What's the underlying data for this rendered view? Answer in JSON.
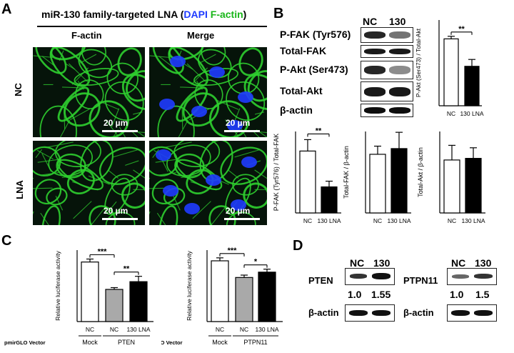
{
  "panel_labels": {
    "a": "A",
    "b": "B",
    "c": "C",
    "d": "D"
  },
  "panel_a": {
    "title_prefix": "miR-130 family-targeted LNA (",
    "title_dapi": "DAPI",
    "title_factin": "F-actin",
    "title_suffix": ")",
    "col_factin": "F-actin",
    "col_merge": "Merge",
    "row_nc": "NC",
    "row_lna": "LNA",
    "scale_label": "20 µm",
    "colors": {
      "factin": "#2fcf2f",
      "dapi": "#1f3bff"
    }
  },
  "panel_b": {
    "lane_nc": "NC",
    "lane_130": "130",
    "blot_labels": [
      "P-FAK (Tyr576)",
      "Total-FAK",
      "P-Akt (Ser473)",
      "Total-Akt",
      "β-actin"
    ],
    "blot_intensity": [
      [
        0.85,
        0.55
      ],
      [
        0.9,
        0.9
      ],
      [
        0.85,
        0.45
      ],
      [
        0.9,
        0.9
      ],
      [
        0.95,
        0.95
      ]
    ]
  },
  "panel_d": {
    "pten": {
      "lane_nc": "NC",
      "lane_130": "130",
      "label": "PTEN",
      "q1": "1.0",
      "q2": "1.55",
      "actin": "β-actin"
    },
    "ptpn11": {
      "lane_nc": "NC",
      "lane_130": "130",
      "label": "PTPN11",
      "q1": "1.0",
      "q2": "1.5",
      "actin": "β-actin"
    }
  },
  "chart_data": [
    {
      "type": "bar",
      "panel": "B",
      "id": "b-pakt",
      "categories": [
        "NC",
        "130 LNA"
      ],
      "values": [
        0.78,
        0.46
      ],
      "errors": [
        0.03,
        0.08
      ],
      "colors": [
        "#ffffff",
        "#000000"
      ],
      "ylabel": "P-Akt (Ser473) / Total-Akt",
      "sig": [
        "**"
      ]
    },
    {
      "type": "bar",
      "panel": "B",
      "id": "b-pfak",
      "categories": [
        "NC",
        "130 LNA"
      ],
      "values": [
        0.76,
        0.32
      ],
      "errors": [
        0.14,
        0.07
      ],
      "colors": [
        "#ffffff",
        "#000000"
      ],
      "ylabel": "P-FAK (Tyr576) / Total-FAK",
      "sig": [
        "**"
      ]
    },
    {
      "type": "bar",
      "panel": "B",
      "id": "b-tfak",
      "categories": [
        "NC",
        "130 LNA"
      ],
      "values": [
        0.72,
        0.79
      ],
      "errors": [
        0.1,
        0.2
      ],
      "colors": [
        "#ffffff",
        "#000000"
      ],
      "ylabel": "Total-FAK / β-actin",
      "sig": []
    },
    {
      "type": "bar",
      "panel": "B",
      "id": "b-takt",
      "categories": [
        "NC",
        "130 LNA"
      ],
      "values": [
        0.65,
        0.67
      ],
      "errors": [
        0.18,
        0.13
      ],
      "colors": [
        "#ffffff",
        "#000000"
      ],
      "ylabel": "Total-Akt / β-actin",
      "sig": []
    },
    {
      "type": "bar",
      "panel": "C",
      "id": "c-pten",
      "categories": [
        "NC",
        "NC",
        "130 LNA"
      ],
      "groups": [
        "Mock",
        "PTEN"
      ],
      "group_title": "pmirGLO Vector",
      "values": [
        1.0,
        0.54,
        0.67
      ],
      "errors": [
        0.05,
        0.03,
        0.09
      ],
      "colors": [
        "#ffffff",
        "#a9a9a9",
        "#000000"
      ],
      "ylabel": "Relative luciferase activity",
      "sig": [
        "***",
        "**"
      ]
    },
    {
      "type": "bar",
      "panel": "C",
      "id": "c-ptpn11",
      "categories": [
        "NC",
        "NC",
        "130 LNA"
      ],
      "groups": [
        "Mock",
        "PTPN11"
      ],
      "group_title": "pmirGLO Vector",
      "values": [
        1.02,
        0.74,
        0.83
      ],
      "errors": [
        0.05,
        0.04,
        0.05
      ],
      "colors": [
        "#ffffff",
        "#a9a9a9",
        "#000000"
      ],
      "ylabel": "Relative luciferase activity",
      "sig": [
        "***",
        "*"
      ]
    }
  ]
}
